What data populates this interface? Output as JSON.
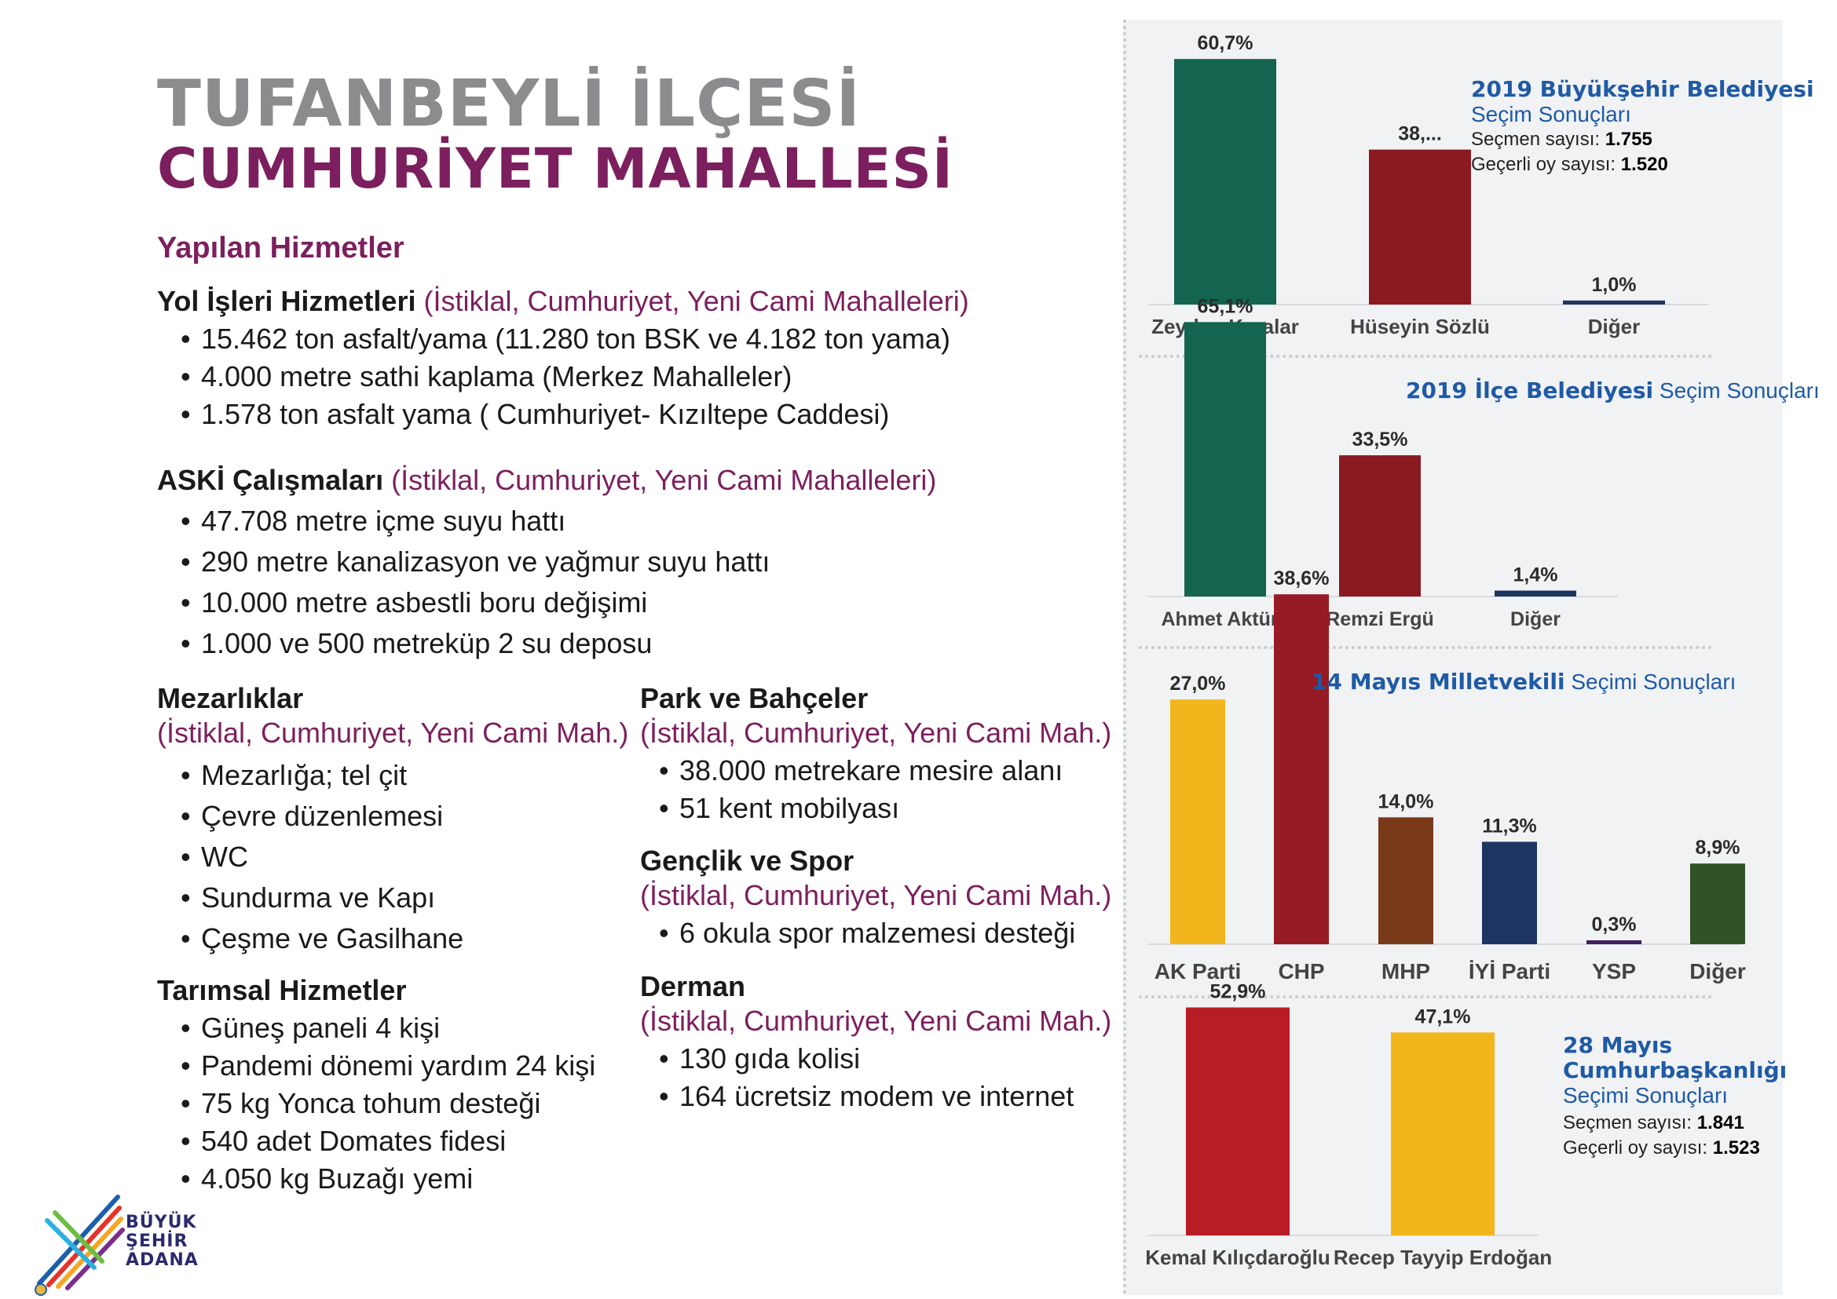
{
  "header": {
    "title": "TUFANBEYLİ İLÇESİ",
    "subtitle": "CUMHURİYET MAHALLESİ",
    "section": "Yapılan Hizmetler"
  },
  "services": {
    "yol": {
      "title": "Yol İşleri Hizmetleri",
      "note": "(İstiklal, Cumhuriyet, Yeni Cami Mahalleleri)",
      "items": [
        "15.462 ton asfalt/yama (11.280 ton BSK ve 4.182 ton yama)",
        "4.000 metre sathi kaplama (Merkez Mahalleler)",
        "1.578 ton asfalt yama ( Cumhuriyet- Kızıltepe Caddesi)"
      ]
    },
    "aski": {
      "title": "ASKİ Çalışmaları",
      "note": "(İstiklal, Cumhuriyet, Yeni Cami Mahalleleri)",
      "items": [
        "47.708 metre içme suyu hattı",
        "290 metre kanalizasyon ve yağmur suyu hattı",
        "10.000 metre asbestli boru değişimi",
        "1.000 ve 500 metreküp 2 su deposu"
      ]
    },
    "mezar": {
      "title": "Mezarlıklar",
      "note": "(İstiklal, Cumhuriyet, Yeni Cami Mah.)",
      "items": [
        "Mezarlığa; tel çit",
        "Çevre düzenlemesi",
        "WC",
        "Sundurma ve Kapı",
        "Çeşme ve Gasilhane"
      ]
    },
    "tarim": {
      "title": "Tarımsal Hizmetler",
      "items": [
        "Güneş paneli 4 kişi",
        "Pandemi dönemi yardım 24 kişi",
        "75 kg Yonca tohum desteği",
        "540 adet Domates fidesi",
        "4.050 kg Buzağı yemi"
      ]
    },
    "park": {
      "title": "Park ve Bahçeler",
      "note": "(İstiklal, Cumhuriyet, Yeni Cami Mah.)",
      "items": [
        "38.000 metrekare mesire alanı",
        "51 kent mobilyası"
      ]
    },
    "genclik": {
      "title": "Gençlik ve Spor",
      "note": "(İstiklal, Cumhuriyet, Yeni Cami Mah.)",
      "items": [
        "6 okula spor malzemesi desteği"
      ]
    },
    "derman": {
      "title": "Derman",
      "note": "(İstiklal, Cumhuriyet, Yeni Cami Mah.)",
      "items": [
        "130 gıda kolisi",
        "164 ücretsiz modem ve internet"
      ]
    }
  },
  "logo": {
    "line1": "BÜYÜK",
    "line2": "ŞEHİR",
    "line3": "ADANA"
  },
  "legends": {
    "c1_title_bold": "2019 Büyükşehir Belediyesi",
    "c1_title_rest": "Seçim Sonuçları",
    "c1_voters_label": "Seçmen sayısı:",
    "c1_voters": "1.755",
    "c1_valid_label": "Geçerli oy sayısı:",
    "c1_valid": "1.520",
    "c2_title_bold": "2019 İlçe Belediyesi",
    "c2_title_rest": "Seçim Sonuçları",
    "c3_title_bold": "14 Mayıs Milletvekili",
    "c3_title_rest": "Seçimi Sonuçları",
    "c4_title_bold1": "28 Mayıs",
    "c4_title_bold2": "Cumhurbaşkanlığı",
    "c4_title_rest": "Seçimi Sonuçları",
    "c4_voters_label": "Seçmen sayısı:",
    "c4_voters": "1.841",
    "c4_valid_label": "Geçerli oy sayısı:",
    "c4_valid": "1.523"
  },
  "chart_data": [
    {
      "type": "bar",
      "title": "2019 Büyükşehir Belediyesi Seçim Sonuçları",
      "categories": [
        "Zeydan Karalar",
        "Hüseyin Sözlü",
        "Diğer"
      ],
      "values": [
        60.7,
        38.3,
        1.0
      ],
      "labels": [
        "60,7%",
        "38,...",
        "1,0%"
      ],
      "colors": [
        "#13654f",
        "#8a1a20",
        "#1d3660"
      ]
    },
    {
      "type": "bar",
      "title": "2019 İlçe Belediyesi Seçim Sonuçları",
      "categories": [
        "Ahmet Aktürk",
        "Remzi Ergü",
        "Diğer"
      ],
      "values": [
        65.1,
        33.5,
        1.4
      ],
      "labels": [
        "65,1%",
        "33,5%",
        "1,4%"
      ],
      "colors": [
        "#13654f",
        "#8a1a20",
        "#1d3660"
      ]
    },
    {
      "type": "bar",
      "title": "14 Mayıs Milletvekili Seçimi Sonuçları",
      "categories": [
        "AK Parti",
        "CHP",
        "MHP",
        "İYİ Parti",
        "YSP",
        "Diğer"
      ],
      "values": [
        27.0,
        38.6,
        14.0,
        11.3,
        0.3,
        8.9
      ],
      "labels": [
        "27,0%",
        "38,6%",
        "14,0%",
        "11,3%",
        "0,3%",
        "8,9%"
      ],
      "colors": [
        "#f2b61c",
        "#961b24",
        "#7a3a1a",
        "#1e3463",
        "#3e1f62",
        "#2f5226"
      ]
    },
    {
      "type": "bar",
      "title": "28 Mayıs Cumhurbaşkanlığı Seçimi Sonuçları",
      "categories": [
        "Kemal Kılıçdaroğlu",
        "Recep Tayyip Erdoğan"
      ],
      "values": [
        52.9,
        47.1
      ],
      "labels": [
        "52,9%",
        "47,1%"
      ],
      "colors": [
        "#b81c24",
        "#f2b61c"
      ]
    }
  ]
}
